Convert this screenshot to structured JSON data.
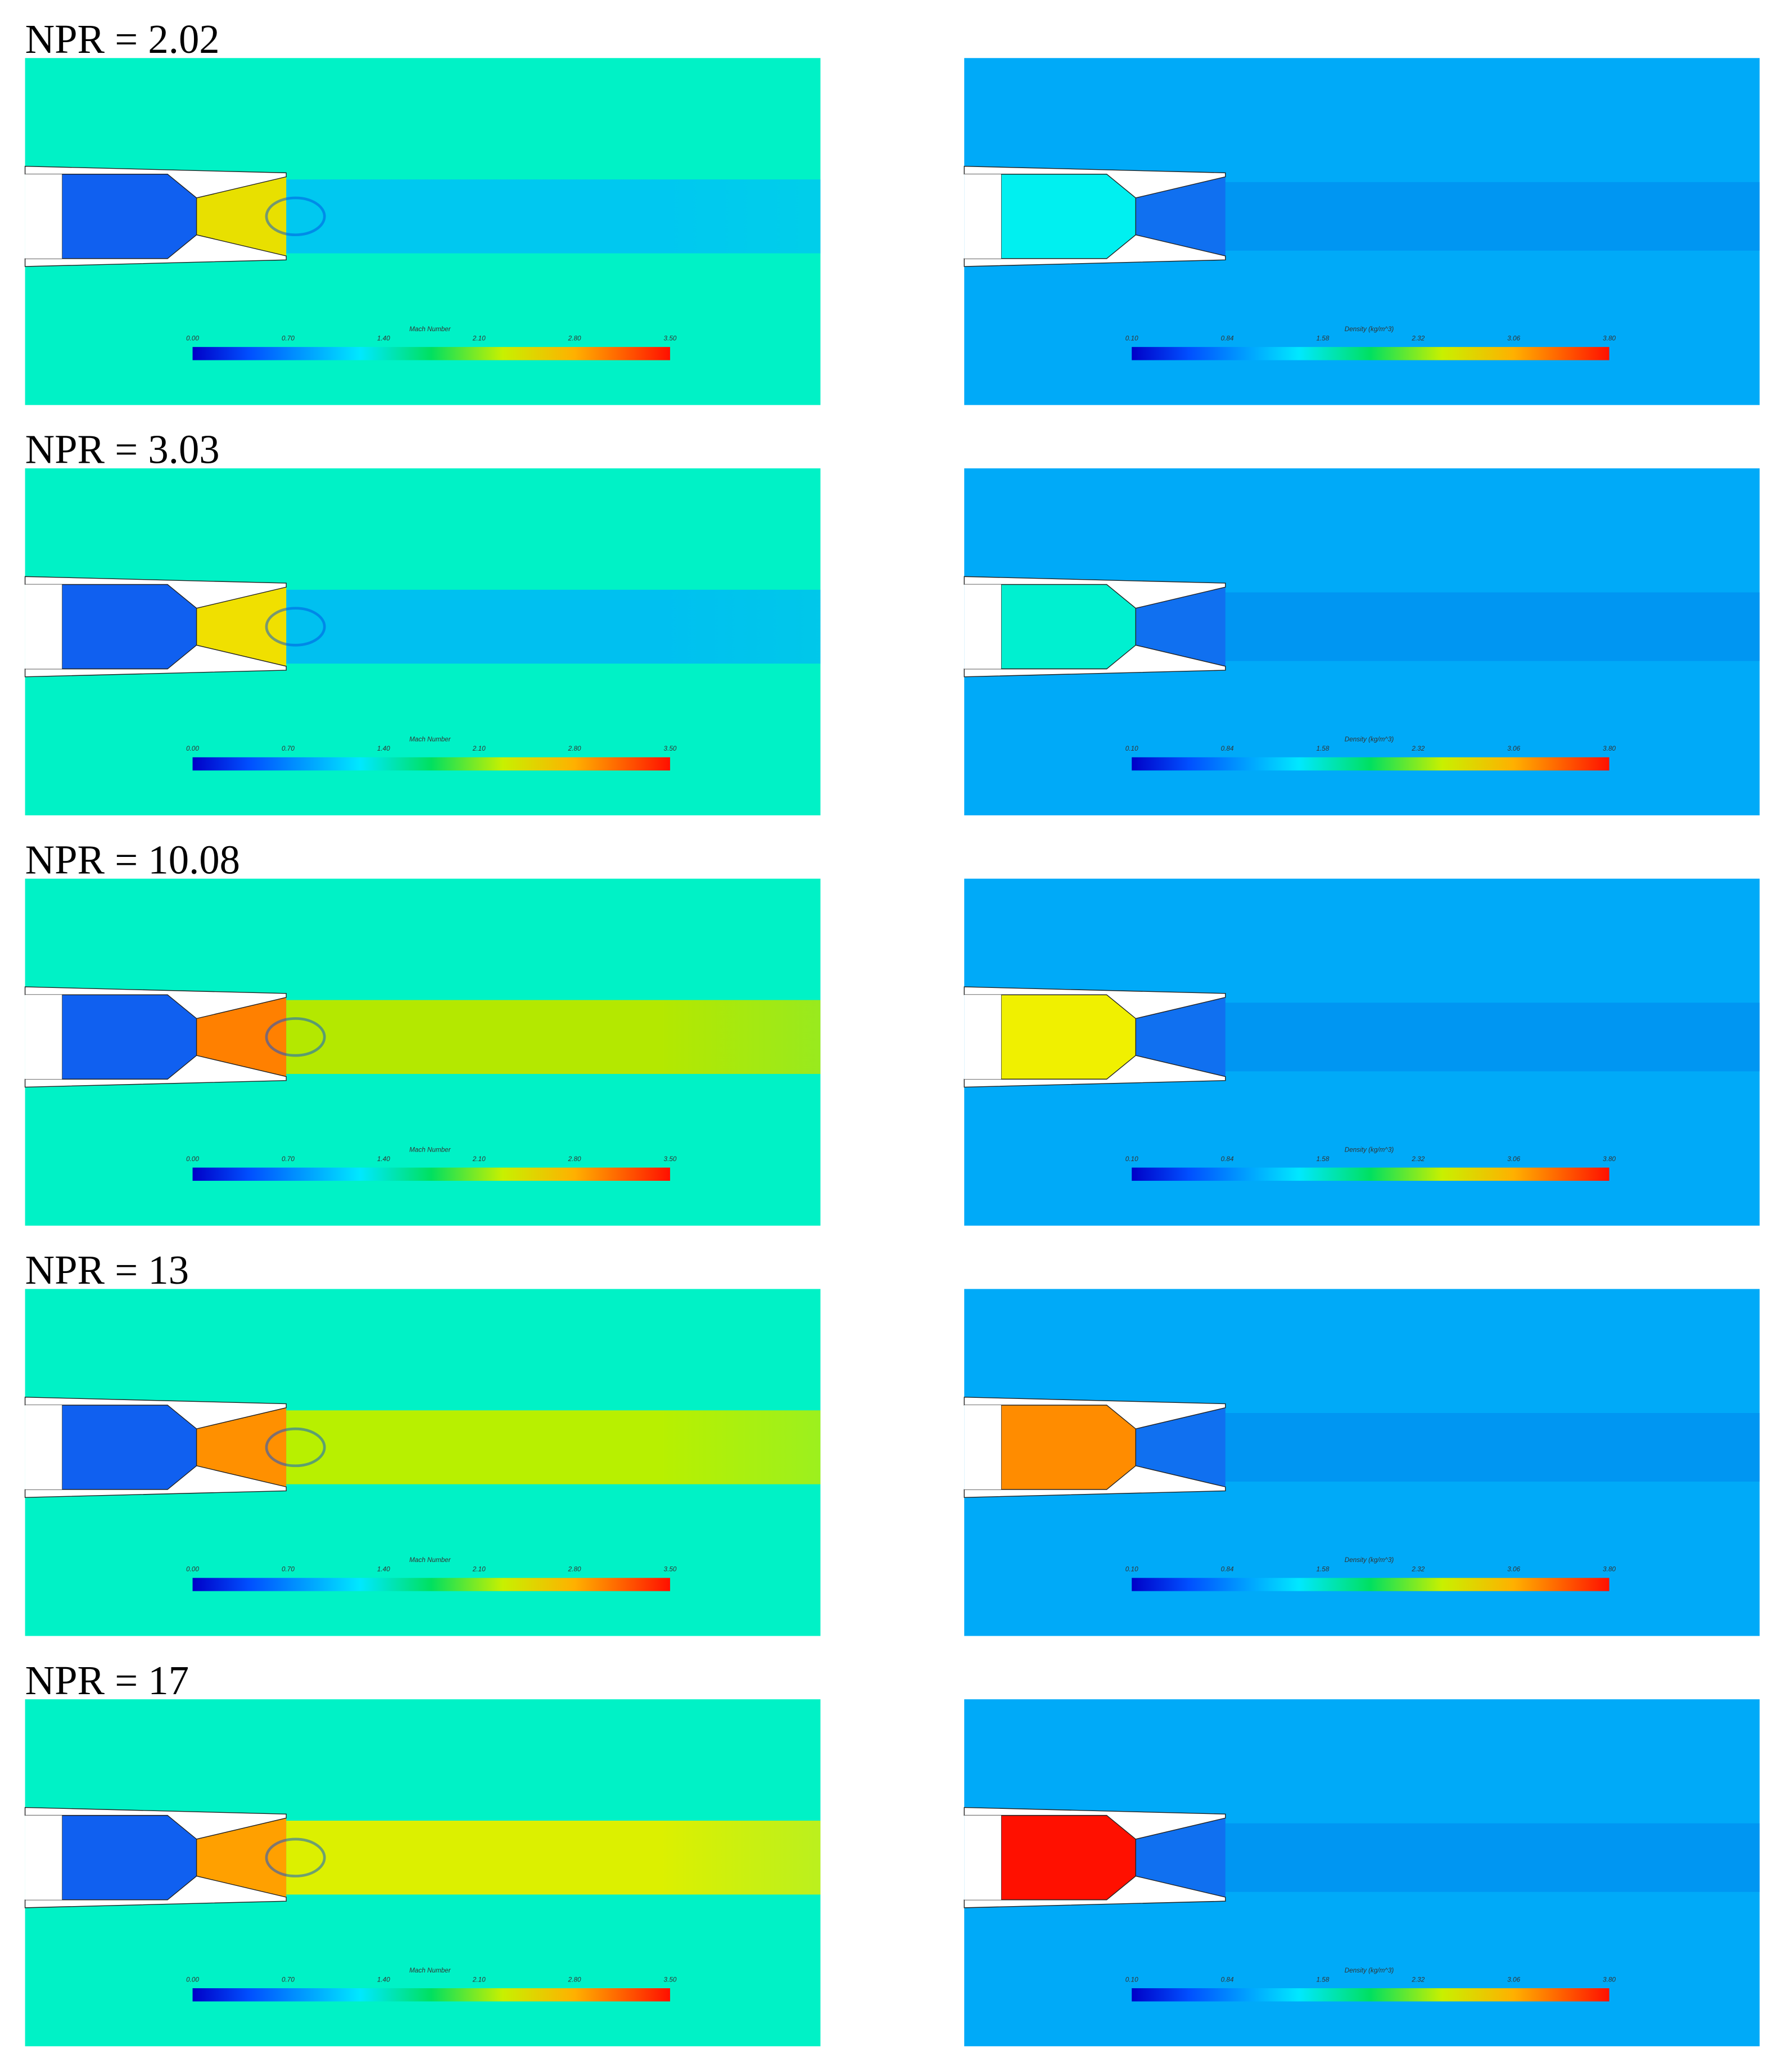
{
  "panels": [
    {
      "label": "NPR = 2.02"
    },
    {
      "label": "NPR = 3.03"
    },
    {
      "label": "NPR = 10.08"
    },
    {
      "label": "NPR = 13"
    },
    {
      "label": "NPR = 17"
    }
  ],
  "colorbars": {
    "mach": {
      "title": "Mach Number",
      "ticks": [
        "0.00",
        "0.70",
        "1.40",
        "2.10",
        "2.80",
        "3.50"
      ]
    },
    "density": {
      "title": "Density (kg/m^3)",
      "ticks": [
        "0.10",
        "0.84",
        "1.58",
        "2.32",
        "3.06",
        "3.80"
      ]
    }
  }
}
